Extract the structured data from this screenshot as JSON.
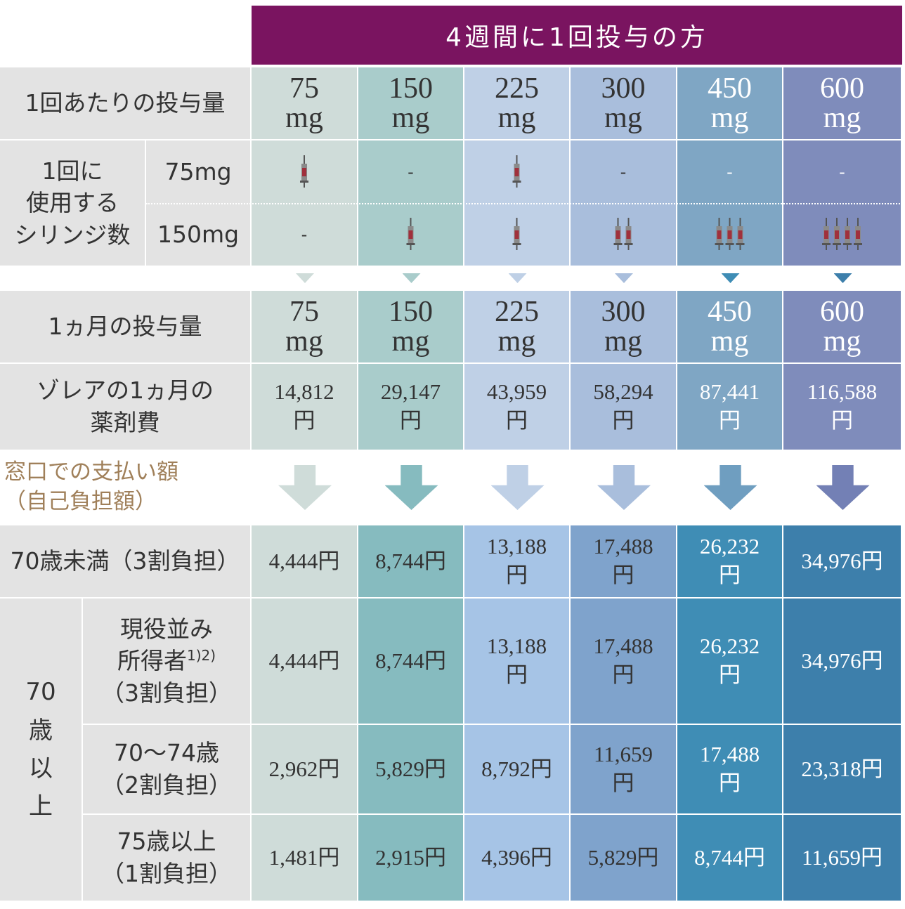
{
  "header": {
    "title": "4週間に1回投与の方"
  },
  "dose_row": {
    "label": "1回あたりの投与量",
    "cells": [
      [
        "75",
        "mg"
      ],
      [
        "150",
        "mg"
      ],
      [
        "225",
        "mg"
      ],
      [
        "300",
        "mg"
      ],
      [
        "450",
        "mg"
      ],
      [
        "600",
        "mg"
      ]
    ]
  },
  "syringe_rows": {
    "label": [
      "1回に",
      "使用する",
      "シリンジ数"
    ],
    "rows": [
      {
        "label": "75mg",
        "cells": [
          1,
          "-",
          1,
          "-",
          "-",
          "-"
        ]
      },
      {
        "label": "150mg",
        "cells": [
          "-",
          1,
          1,
          2,
          3,
          4
        ]
      }
    ]
  },
  "monthly_dose_row": {
    "label": "1ヵ月の投与量",
    "cells": [
      [
        "75",
        "mg"
      ],
      [
        "150",
        "mg"
      ],
      [
        "225",
        "mg"
      ],
      [
        "300",
        "mg"
      ],
      [
        "450",
        "mg"
      ],
      [
        "600",
        "mg"
      ]
    ]
  },
  "cost_row": {
    "label": [
      "ゾレアの1ヵ月の",
      "薬剤費"
    ],
    "cells": [
      [
        "14,812",
        "円"
      ],
      [
        "29,147",
        "円"
      ],
      [
        "43,959",
        "円"
      ],
      [
        "58,294",
        "円"
      ],
      [
        "87,441",
        "円"
      ],
      [
        "116,588",
        "円"
      ]
    ]
  },
  "payment_heading": [
    "窓口での支払い額",
    "（自己負担額）"
  ],
  "under70_row": {
    "label": "70歳未満（3割負担）",
    "cells": [
      [
        "4,444円"
      ],
      [
        "8,744円"
      ],
      [
        "13,188",
        "円"
      ],
      [
        "17,488",
        "円"
      ],
      [
        "26,232",
        "円"
      ],
      [
        "34,976円"
      ]
    ]
  },
  "over70": {
    "label": [
      "70",
      "歳",
      "以",
      "上"
    ],
    "rows": [
      {
        "label": [
          "現役並み",
          "所得者",
          "（3割負担）"
        ],
        "sup": "1)2)",
        "cells": [
          [
            "4,444円"
          ],
          [
            "8,744円"
          ],
          [
            "13,188",
            "円"
          ],
          [
            "17,488",
            "円"
          ],
          [
            "26,232",
            "円"
          ],
          [
            "34,976円"
          ]
        ]
      },
      {
        "label": [
          "70〜74歳",
          "（2割負担）"
        ],
        "cells": [
          [
            "2,962円"
          ],
          [
            "5,829円"
          ],
          [
            "8,792円"
          ],
          [
            "11,659",
            "円"
          ],
          [
            "17,488",
            "円"
          ],
          [
            "23,318円"
          ]
        ]
      },
      {
        "label": [
          "75歳以上",
          "（1割負担）"
        ],
        "cells": [
          [
            "1,481円"
          ],
          [
            "2,915円"
          ],
          [
            "4,396円"
          ],
          [
            "5,829円"
          ],
          [
            "8,744円"
          ],
          [
            "11,659円"
          ]
        ]
      }
    ]
  }
}
